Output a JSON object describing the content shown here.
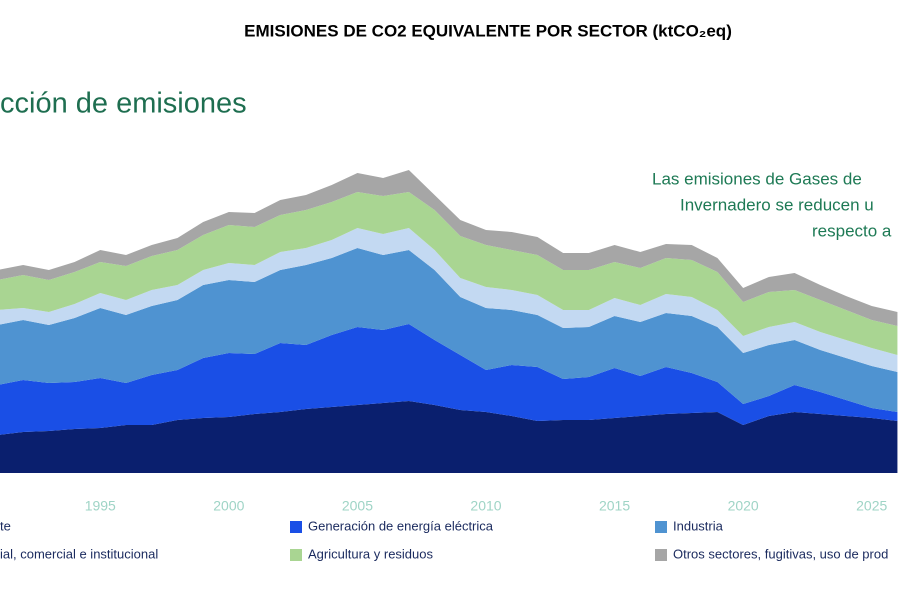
{
  "chart_data": {
    "type": "stacked_area",
    "title": "EMISIONES DE CO2 EQUIVALENTE POR SECTOR (ktCO₂eq)",
    "subtitle": "cción de emisiones",
    "annotation": [
      "Las emisiones de Gases de",
      "Invernadero se reducen u",
      "respecto a"
    ],
    "x": [
      1991,
      1992,
      1993,
      1994,
      1995,
      1996,
      1997,
      1998,
      1999,
      2000,
      2001,
      2002,
      2003,
      2004,
      2005,
      2006,
      2007,
      2008,
      2009,
      2010,
      2011,
      2012,
      2013,
      2014,
      2015,
      2016,
      2017,
      2018,
      2019,
      2020,
      2021,
      2022,
      2023,
      2024,
      2025,
      2026
    ],
    "xlim": [
      1991.1,
      2026.1
    ],
    "xticks": [
      1995,
      2000,
      2005,
      2010,
      2015,
      2020,
      2025
    ],
    "ylim": [
      0,
      350
    ],
    "series": [
      {
        "name": "te",
        "color": "#0a1f6e",
        "values": [
          38,
          41,
          42,
          44,
          45,
          48,
          48,
          53,
          55,
          56,
          59,
          61,
          64,
          66,
          68,
          70,
          72,
          68,
          63,
          61,
          57,
          52,
          53,
          53,
          55,
          57,
          59,
          60,
          61,
          48,
          57,
          61,
          59,
          57,
          55,
          52
        ]
      },
      {
        "name": "Generación de energía eléctrica",
        "color": "#1a4fe6",
        "values": [
          50,
          52,
          48,
          47,
          50,
          42,
          50,
          50,
          60,
          64,
          60,
          69,
          64,
          72,
          78,
          73,
          77,
          65,
          55,
          42,
          51,
          54,
          41,
          43,
          50,
          40,
          47,
          40,
          30,
          21,
          20,
          27,
          22,
          16,
          10,
          9
        ]
      },
      {
        "name": "Industria",
        "color": "#4f93d1",
        "values": [
          60,
          60,
          58,
          64,
          70,
          68,
          69,
          70,
          73,
          73,
          72,
          73,
          80,
          77,
          79,
          75,
          74,
          70,
          58,
          62,
          55,
          52,
          51,
          50,
          52,
          54,
          54,
          57,
          55,
          51,
          51,
          45,
          42,
          42,
          42,
          40
        ]
      },
      {
        "name": "ial, comercial e institucional",
        "color": "#c3d9f2",
        "values": [
          15,
          12,
          13,
          14,
          15,
          15,
          16,
          15,
          15,
          17,
          17,
          18,
          17,
          18,
          20,
          21,
          22,
          20,
          19,
          21,
          20,
          20,
          18,
          17,
          18,
          17,
          19,
          19,
          17,
          17,
          18,
          18,
          18,
          18,
          18,
          17
        ]
      },
      {
        "name": "Agricultura y residuos",
        "color": "#a9d592",
        "values": [
          30,
          33,
          32,
          32,
          31,
          34,
          34,
          35,
          35,
          38,
          38,
          37,
          38,
          38,
          36,
          38,
          36,
          40,
          42,
          42,
          40,
          40,
          40,
          40,
          36,
          37,
          36,
          37,
          38,
          34,
          35,
          32,
          32,
          30,
          28,
          29
        ]
      },
      {
        "name": "Otros sectores, fugitivas, uso de prod",
        "color": "#a6a6a6",
        "values": [
          10,
          10,
          10,
          10,
          12,
          11,
          11,
          12,
          13,
          13,
          14,
          15,
          15,
          17,
          19,
          18,
          22,
          15,
          16,
          15,
          18,
          18,
          17,
          17,
          17,
          16,
          14,
          15,
          14,
          14,
          15,
          17,
          15,
          14,
          14,
          14
        ]
      }
    ]
  }
}
